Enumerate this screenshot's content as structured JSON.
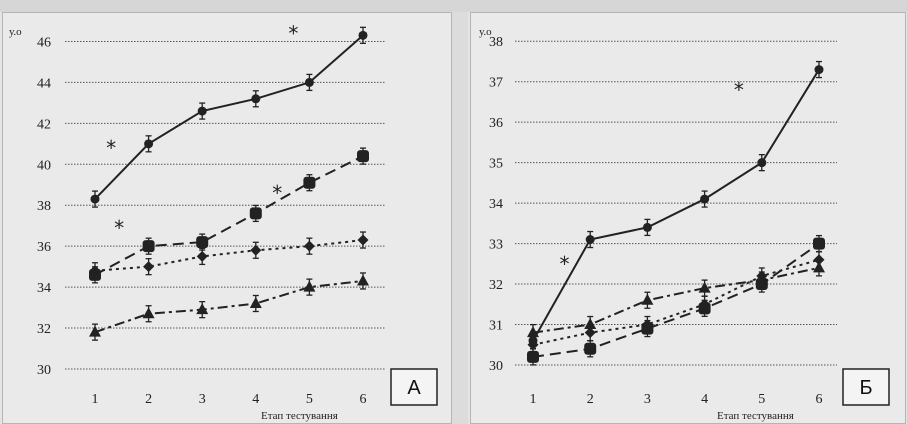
{
  "chart_data": [
    {
      "type": "line",
      "panel_label": "А",
      "ylabel": "у.о",
      "xlabel": "Етап тестування",
      "categories": [
        "1",
        "2",
        "3",
        "4",
        "5",
        "6"
      ],
      "ylim": [
        30,
        47
      ],
      "yticks": [
        30,
        32,
        34,
        36,
        38,
        40,
        42,
        44,
        46
      ],
      "grid": true,
      "series": [
        {
          "marker": "circle",
          "line": "solid",
          "values": [
            38.3,
            41.0,
            42.6,
            43.2,
            44.0,
            46.3
          ]
        },
        {
          "marker": "square",
          "line": "dashed",
          "values": [
            34.6,
            36.0,
            36.2,
            37.6,
            39.1,
            40.4
          ]
        },
        {
          "marker": "diamond",
          "line": "dotted",
          "values": [
            34.8,
            35.0,
            35.5,
            35.8,
            36.0,
            36.3
          ]
        },
        {
          "marker": "triangle",
          "line": "dashdot",
          "values": [
            31.8,
            32.7,
            32.9,
            33.2,
            34.0,
            34.3
          ]
        }
      ],
      "annotations": [
        {
          "text": "*",
          "x": 1.3,
          "y": 40.8
        },
        {
          "text": "*",
          "x": 1.45,
          "y": 36.9
        },
        {
          "text": "*",
          "x": 4.4,
          "y": 38.6
        },
        {
          "text": "*",
          "x": 4.7,
          "y": 46.4
        }
      ]
    },
    {
      "type": "line",
      "panel_label": "Б",
      "ylabel": "у.о",
      "xlabel": "Етап тестування",
      "categories": [
        "1",
        "2",
        "3",
        "4",
        "5",
        "6"
      ],
      "ylim": [
        30,
        38.5
      ],
      "yticks": [
        30,
        31,
        32,
        33,
        34,
        35,
        36,
        37,
        38
      ],
      "grid": true,
      "series": [
        {
          "marker": "circle",
          "line": "solid",
          "values": [
            30.6,
            33.1,
            33.4,
            34.1,
            35.0,
            37.3
          ]
        },
        {
          "marker": "square",
          "line": "dashed",
          "values": [
            30.2,
            30.4,
            30.9,
            31.4,
            32.0,
            33.0
          ]
        },
        {
          "marker": "diamond",
          "line": "dotted",
          "values": [
            30.5,
            30.8,
            31.0,
            31.5,
            32.2,
            32.6
          ]
        },
        {
          "marker": "triangle",
          "line": "dashdot",
          "values": [
            30.8,
            31.0,
            31.6,
            31.9,
            32.1,
            32.4
          ]
        }
      ],
      "annotations": [
        {
          "text": "*",
          "x": 1.55,
          "y": 32.5
        },
        {
          "text": "*",
          "x": 4.6,
          "y": 36.8
        }
      ]
    }
  ]
}
